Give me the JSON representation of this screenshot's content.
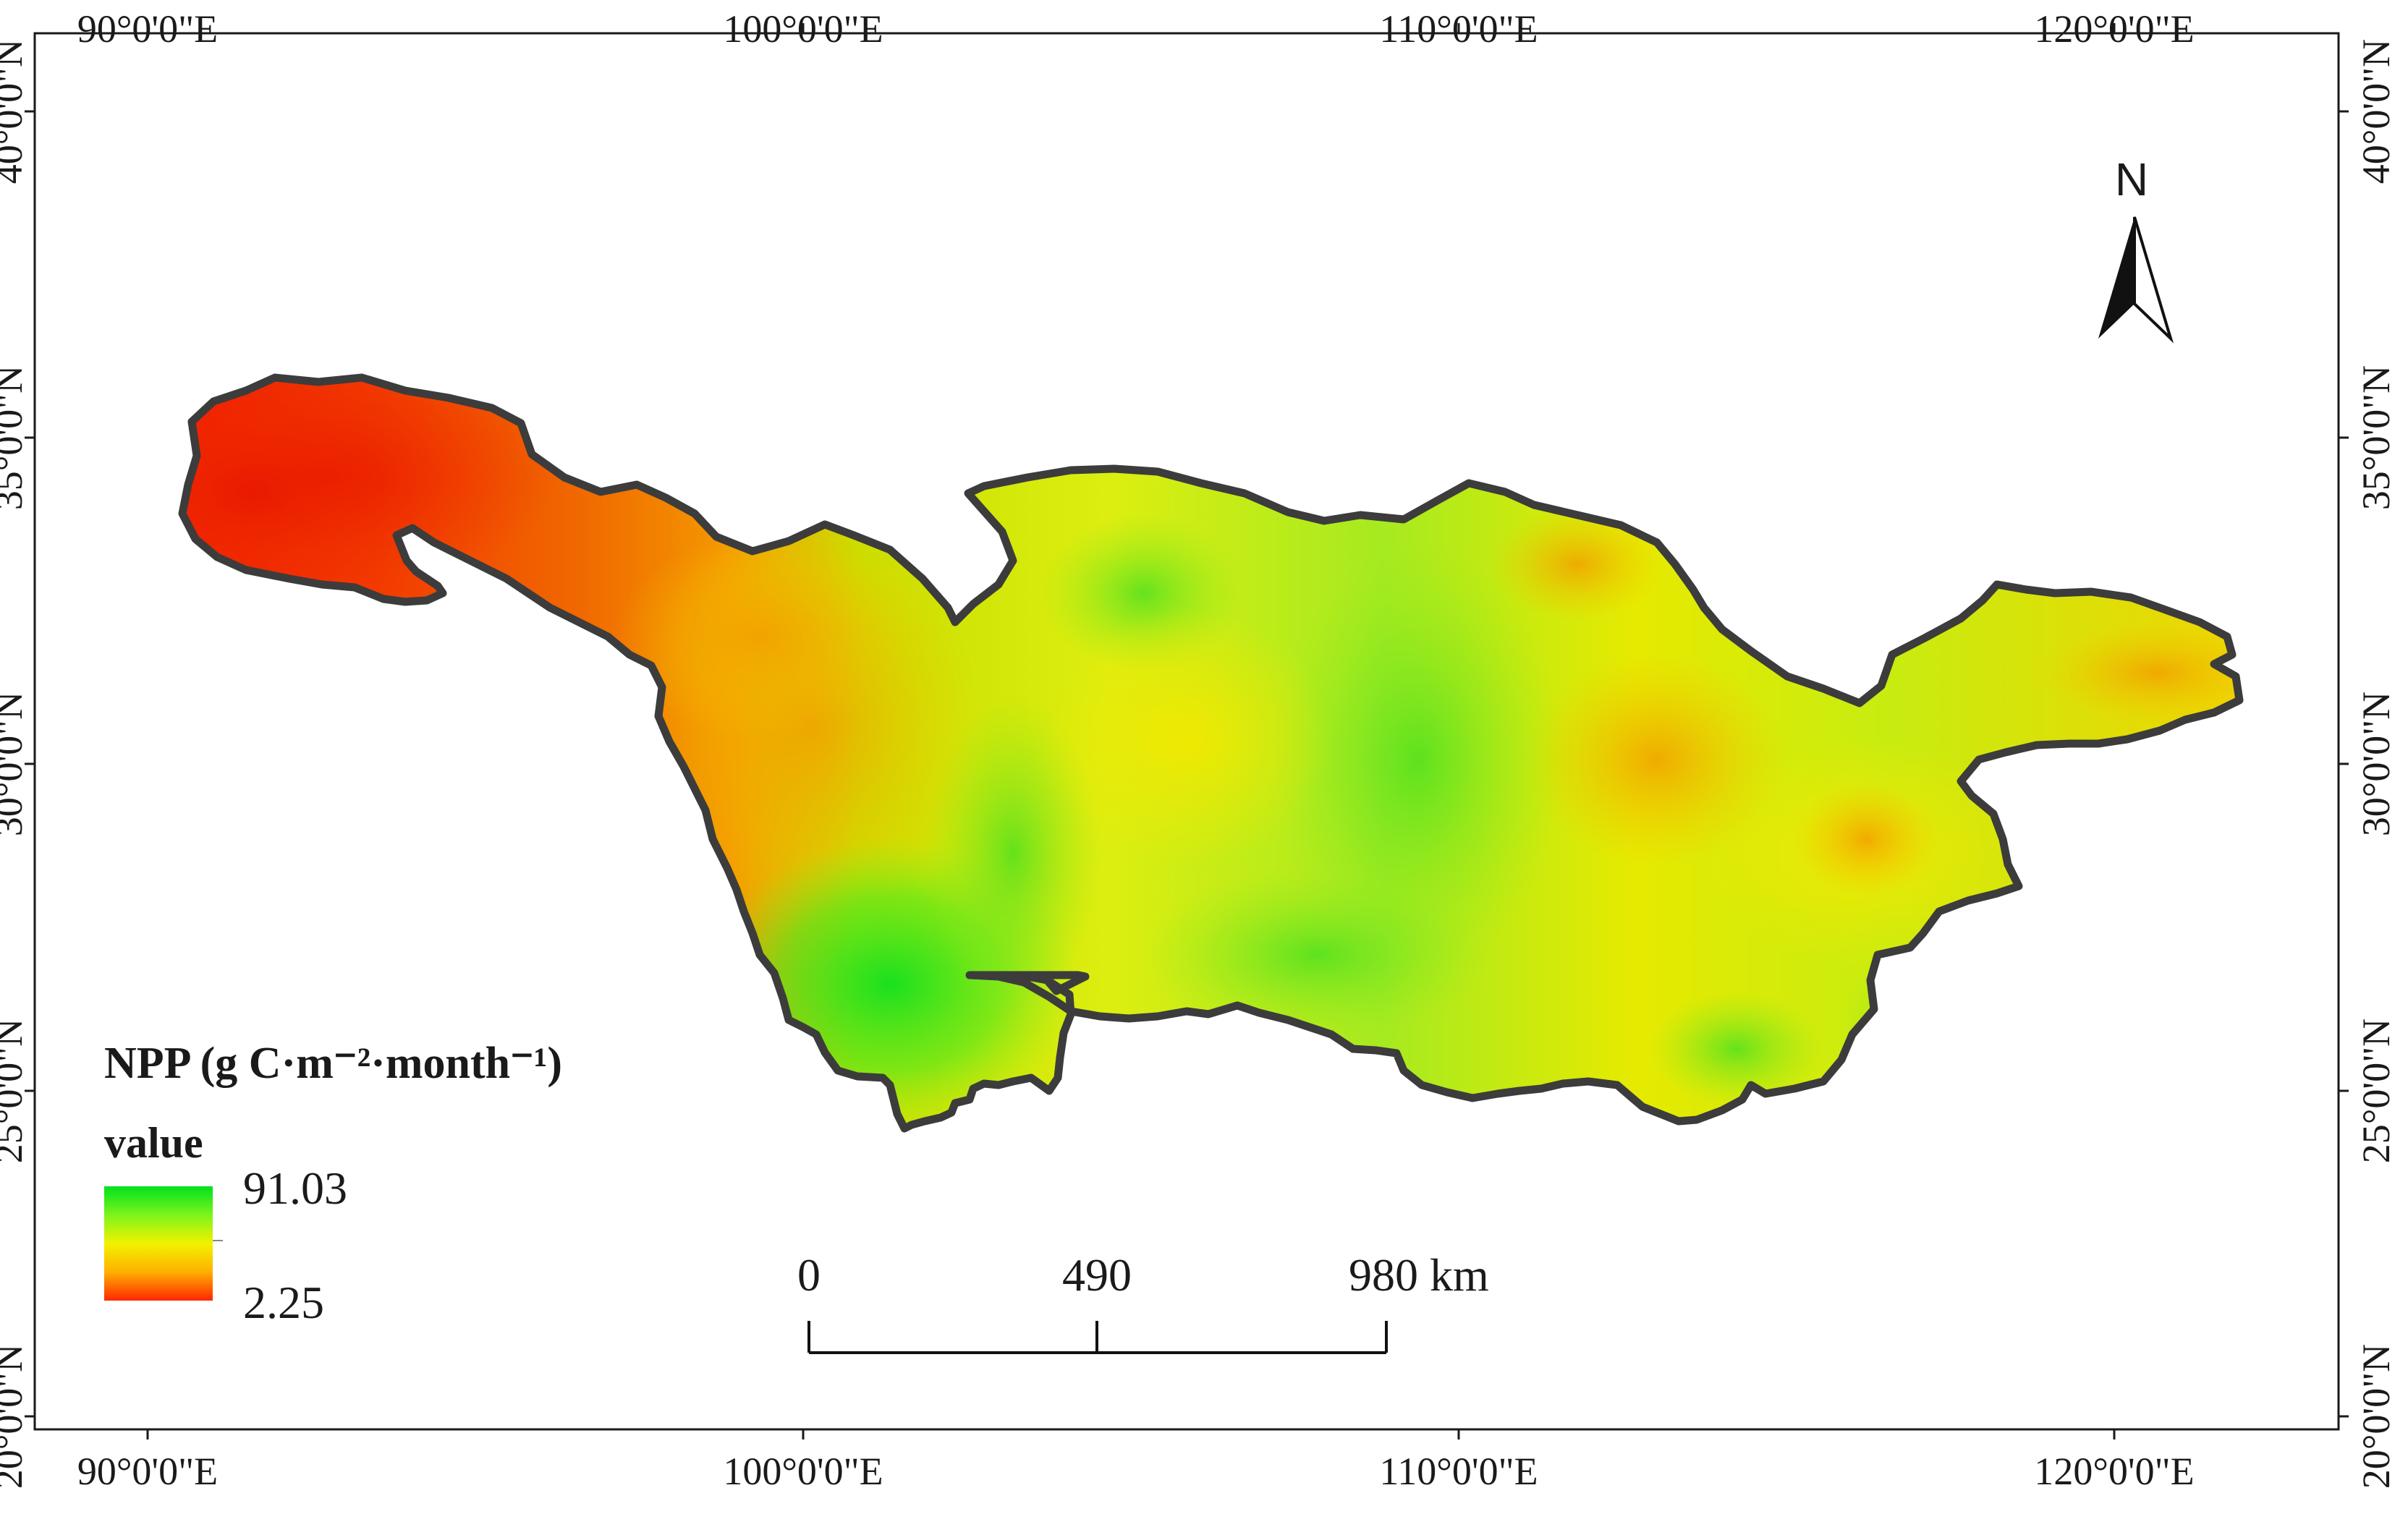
{
  "graticule": {
    "longitudes": [
      "90°0'0\"E",
      "100°0'0\"E",
      "110°0'0\"E",
      "120°0'0\"E"
    ],
    "latitudes": [
      "40°0'0\"N",
      "35°0'0\"N",
      "30°0'0\"N",
      "25°0'0\"N",
      "20°0'0\"N"
    ]
  },
  "north_arrow": {
    "label": "N"
  },
  "legend": {
    "title": "NPP (g C·m⁻²·month⁻¹)",
    "subtitle": "value",
    "max_label": "91.03",
    "min_label": "2.25",
    "max_value": 91.03,
    "min_value": 2.25,
    "colors": [
      "#00e21c",
      "#7cf41c",
      "#f2f200",
      "#ffb000",
      "#ff2600"
    ]
  },
  "scale_bar": {
    "labels": [
      "0",
      "490",
      "980 km"
    ]
  },
  "colors": {
    "outline": "#3c3c3c",
    "frame": "#1a1a1a",
    "background": "#ffffff"
  }
}
